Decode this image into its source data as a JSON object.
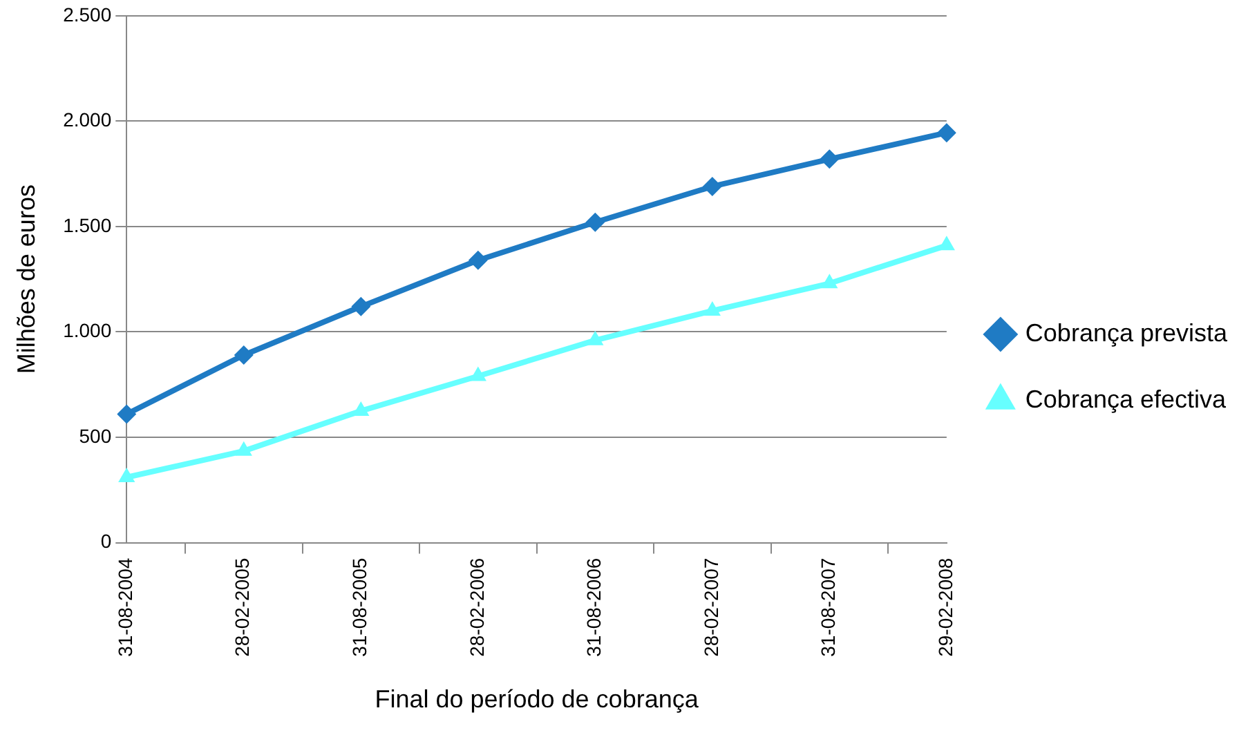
{
  "chart_data": {
    "type": "line",
    "xlabel": "Final do período de cobrança",
    "ylabel": "Milhões de euros",
    "categories": [
      "31-08-2004",
      "28-02-2005",
      "31-08-2005",
      "28-02-2006",
      "31-08-2006",
      "28-02-2007",
      "31-08-2007",
      "29-02-2008"
    ],
    "series": [
      {
        "name": "Cobrança prevista",
        "color": "#1f7bc4",
        "marker": "diamond",
        "values": [
          610,
          890,
          1120,
          1340,
          1520,
          1690,
          1820,
          1945
        ]
      },
      {
        "name": "Cobrança efectiva",
        "color": "#66ffff",
        "marker": "triangle",
        "values": [
          310,
          435,
          625,
          790,
          960,
          1100,
          1230,
          1410
        ]
      }
    ],
    "ylim": [
      0,
      2500
    ],
    "yticks": [
      0,
      500,
      {
        "value": 1000,
        "label": "1.000"
      },
      {
        "value": 1500,
        "label": "1.500"
      },
      {
        "value": 2000,
        "label": "2.000"
      },
      {
        "value": 2500,
        "label": "2.500"
      }
    ],
    "grid": "y",
    "legend": "right"
  }
}
